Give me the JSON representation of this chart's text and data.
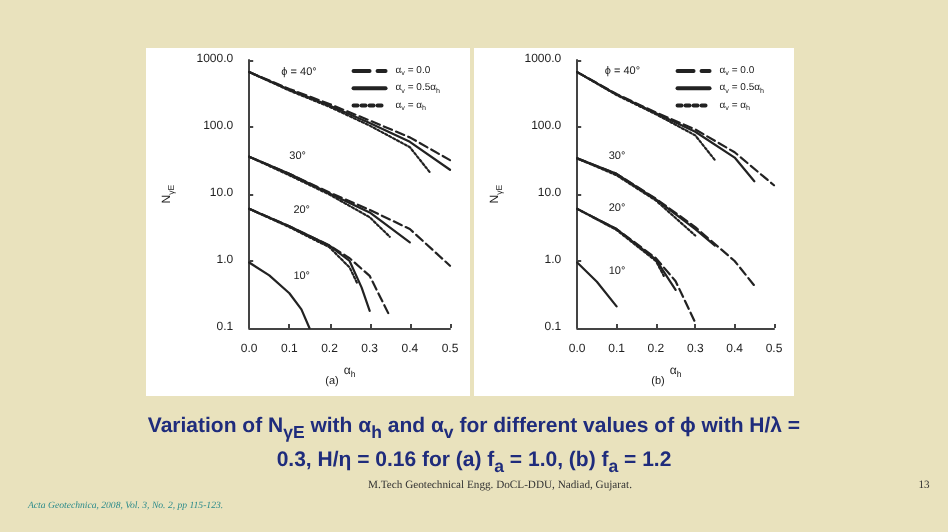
{
  "chart_data": [
    {
      "type": "line",
      "xlabel": "α$_{h}$",
      "ylabel": "N$_{γE}$",
      "log": "y",
      "legend": "top right",
      "marker": "none",
      "xlim": [
        0,
        0.5
      ],
      "ylim": [
        0.1,
        1000
      ],
      "xticks": [
        {
          "value": 0,
          "label": "0.0"
        },
        {
          "value": 0.1,
          "label": "0.1"
        },
        {
          "value": 0.2,
          "label": "0.2"
        },
        {
          "value": 0.3,
          "label": "0.3"
        },
        {
          "value": 0.4,
          "label": "0.4"
        },
        {
          "value": 0.5,
          "label": "0.5"
        }
      ],
      "yticks": [
        {
          "value": 0.1,
          "label": "0.1"
        },
        {
          "value": 1,
          "label": "1.0"
        },
        {
          "value": 10,
          "label": "10.0"
        },
        {
          "value": 100,
          "label": "100.0"
        },
        {
          "value": 1000,
          "label": "1000.0"
        }
      ],
      "series": [
        {
          "name": "α$_{v}$ = 0.0",
          "color": "#222222",
          "line_style": "dashed",
          "x": [
            0,
            0.1,
            0.2,
            0.3,
            0.4,
            0.5
          ],
          "values": [
            660,
            370,
            220,
            125,
            70,
            32
          ]
        },
        {
          "name": "α$_{v}$ = 0.5α$_{h}$",
          "color": "#222222",
          "line_style": "solid",
          "x": [
            0,
            0.1,
            0.2,
            0.3,
            0.4,
            0.5
          ],
          "values": [
            660,
            360,
            210,
            115,
            60,
            23
          ]
        },
        {
          "name": "α$_{v}$ = α$_{h}$",
          "color": "#222222",
          "line_style": "dotted",
          "x": [
            0,
            0.1,
            0.2,
            0.3,
            0.4,
            0.45
          ],
          "values": [
            660,
            350,
            200,
            105,
            50,
            21
          ]
        },
        {
          "color": "#222222",
          "line_style": "dashed",
          "x": [
            0,
            0.1,
            0.2,
            0.3,
            0.4,
            0.5
          ],
          "values": [
            36,
            20,
            10.5,
            5.8,
            3.0,
            0.85
          ]
        },
        {
          "color": "#222222",
          "line_style": "solid",
          "x": [
            0,
            0.1,
            0.2,
            0.3,
            0.4
          ],
          "values": [
            36,
            20,
            10.2,
            5.3,
            1.9
          ]
        },
        {
          "color": "#222222",
          "line_style": "dotted",
          "x": [
            0,
            0.1,
            0.2,
            0.3,
            0.35
          ],
          "values": [
            36,
            19,
            9.8,
            4.5,
            2.3
          ]
        },
        {
          "color": "#222222",
          "line_style": "dashed",
          "x": [
            0,
            0.1,
            0.2,
            0.25,
            0.3,
            0.35
          ],
          "values": [
            6,
            3.3,
            1.7,
            1.1,
            0.6,
            0.15
          ]
        },
        {
          "color": "#222222",
          "line_style": "solid",
          "x": [
            0,
            0.1,
            0.2,
            0.25,
            0.28,
            0.3
          ],
          "values": [
            6,
            3.3,
            1.7,
            1.0,
            0.4,
            0.18
          ]
        },
        {
          "color": "#222222",
          "line_style": "dotted",
          "x": [
            0,
            0.1,
            0.2,
            0.25,
            0.27
          ],
          "values": [
            6,
            3.2,
            1.6,
            0.8,
            0.45
          ]
        },
        {
          "color": "#222222",
          "line_style": "solid",
          "x": [
            0,
            0.05,
            0.1,
            0.13,
            0.15
          ],
          "values": [
            0.95,
            0.61,
            0.33,
            0.19,
            0.1
          ]
        }
      ],
      "annotations": [
        {
          "text": "ϕ = 40°",
          "x": 0.08,
          "y": 520
        },
        {
          "text": "30°",
          "x": 0.1,
          "y": 29
        },
        {
          "text": "20°",
          "x": 0.11,
          "y": 4.6
        },
        {
          "text": "10°",
          "x": 0.11,
          "y": 0.47
        },
        "(a)"
      ]
    },
    {
      "type": "line",
      "xlabel": "α$_{h}$",
      "ylabel": "N$_{γE}$",
      "log": "y",
      "legend": "top right",
      "marker": "none",
      "xlim": [
        0,
        0.5
      ],
      "ylim": [
        0.1,
        1000
      ],
      "xticks": [
        {
          "value": 0,
          "label": "0.0"
        },
        {
          "value": 0.1,
          "label": "0.1"
        },
        {
          "value": 0.2,
          "label": "0.2"
        },
        {
          "value": 0.3,
          "label": "0.3"
        },
        {
          "value": 0.4,
          "label": "0.4"
        },
        {
          "value": 0.5,
          "label": "0.5"
        }
      ],
      "yticks": [
        {
          "value": 0.1,
          "label": "0.1"
        },
        {
          "value": 1,
          "label": "1.0"
        },
        {
          "value": 10,
          "label": "10.0"
        },
        {
          "value": 100,
          "label": "100.0"
        },
        {
          "value": 1000,
          "label": "1000.0"
        }
      ],
      "series": [
        {
          "name": "α$_{v}$ = 0.0",
          "color": "#222222",
          "line_style": "dashed",
          "x": [
            0,
            0.1,
            0.2,
            0.3,
            0.4,
            0.5
          ],
          "values": [
            660,
            310,
            165,
            92,
            42,
            13.5
          ]
        },
        {
          "name": "α$_{v}$ = 0.5α$_{h}$",
          "color": "#222222",
          "line_style": "solid",
          "x": [
            0,
            0.1,
            0.2,
            0.3,
            0.4,
            0.45
          ],
          "values": [
            660,
            305,
            160,
            85,
            35,
            15.5
          ]
        },
        {
          "name": "α$_{v}$ = α$_{h}$",
          "color": "#222222",
          "line_style": "dotted",
          "x": [
            0,
            0.1,
            0.2,
            0.3,
            0.35
          ],
          "values": [
            660,
            300,
            155,
            75,
            32
          ]
        },
        {
          "color": "#222222",
          "line_style": "dashed",
          "x": [
            0,
            0.1,
            0.2,
            0.3,
            0.4,
            0.45
          ],
          "values": [
            34,
            20,
            8.5,
            3.2,
            1.0,
            0.43
          ]
        },
        {
          "color": "#222222",
          "line_style": "solid",
          "x": [
            0,
            0.1,
            0.2,
            0.3,
            0.35
          ],
          "values": [
            34,
            20,
            8.3,
            3.0,
            1.7
          ]
        },
        {
          "color": "#222222",
          "line_style": "dotted",
          "x": [
            0,
            0.1,
            0.2,
            0.3
          ],
          "values": [
            34,
            19,
            8.0,
            2.4
          ]
        },
        {
          "color": "#222222",
          "line_style": "dashed",
          "x": [
            0,
            0.1,
            0.2,
            0.25,
            0.3
          ],
          "values": [
            6,
            3.0,
            1.1,
            0.5,
            0.12
          ]
        },
        {
          "color": "#222222",
          "line_style": "solid",
          "x": [
            0,
            0.1,
            0.2,
            0.25
          ],
          "values": [
            6,
            3.0,
            1.05,
            0.37
          ]
        },
        {
          "color": "#222222",
          "line_style": "dotted",
          "x": [
            0,
            0.1,
            0.2,
            0.22
          ],
          "values": [
            6,
            2.9,
            1.0,
            0.6
          ]
        },
        {
          "color": "#222222",
          "line_style": "solid",
          "x": [
            0,
            0.05,
            0.1
          ],
          "values": [
            0.95,
            0.49,
            0.21
          ]
        }
      ],
      "annotations": [
        {
          "text": "ϕ = 40°",
          "x": 0.07,
          "y": 540
        },
        {
          "text": "30°",
          "x": 0.08,
          "y": 29
        },
        {
          "text": "20°",
          "x": 0.08,
          "y": 4.8
        },
        {
          "text": "10°",
          "x": 0.08,
          "y": 0.55
        },
        "(b)"
      ]
    },
    {
      "type": "other",
      "annotations": [
        "Variation of N$_{γE}$ with α$_{h}$ and α$_{v}$ for different values of ϕ with H/λ = 0.3, H/η = 0.16 for (a) f$_{a}$ = 1.0, (b) f$_{a}$ = 1.2",
        "M.Tech Geotechnical Engg. DoCL-DDU, Nadiad, Gujarat.",
        "13",
        "Acta Geotechnica, 2008, Vol. 3, No. 2, pp 115-123."
      ]
    }
  ]
}
